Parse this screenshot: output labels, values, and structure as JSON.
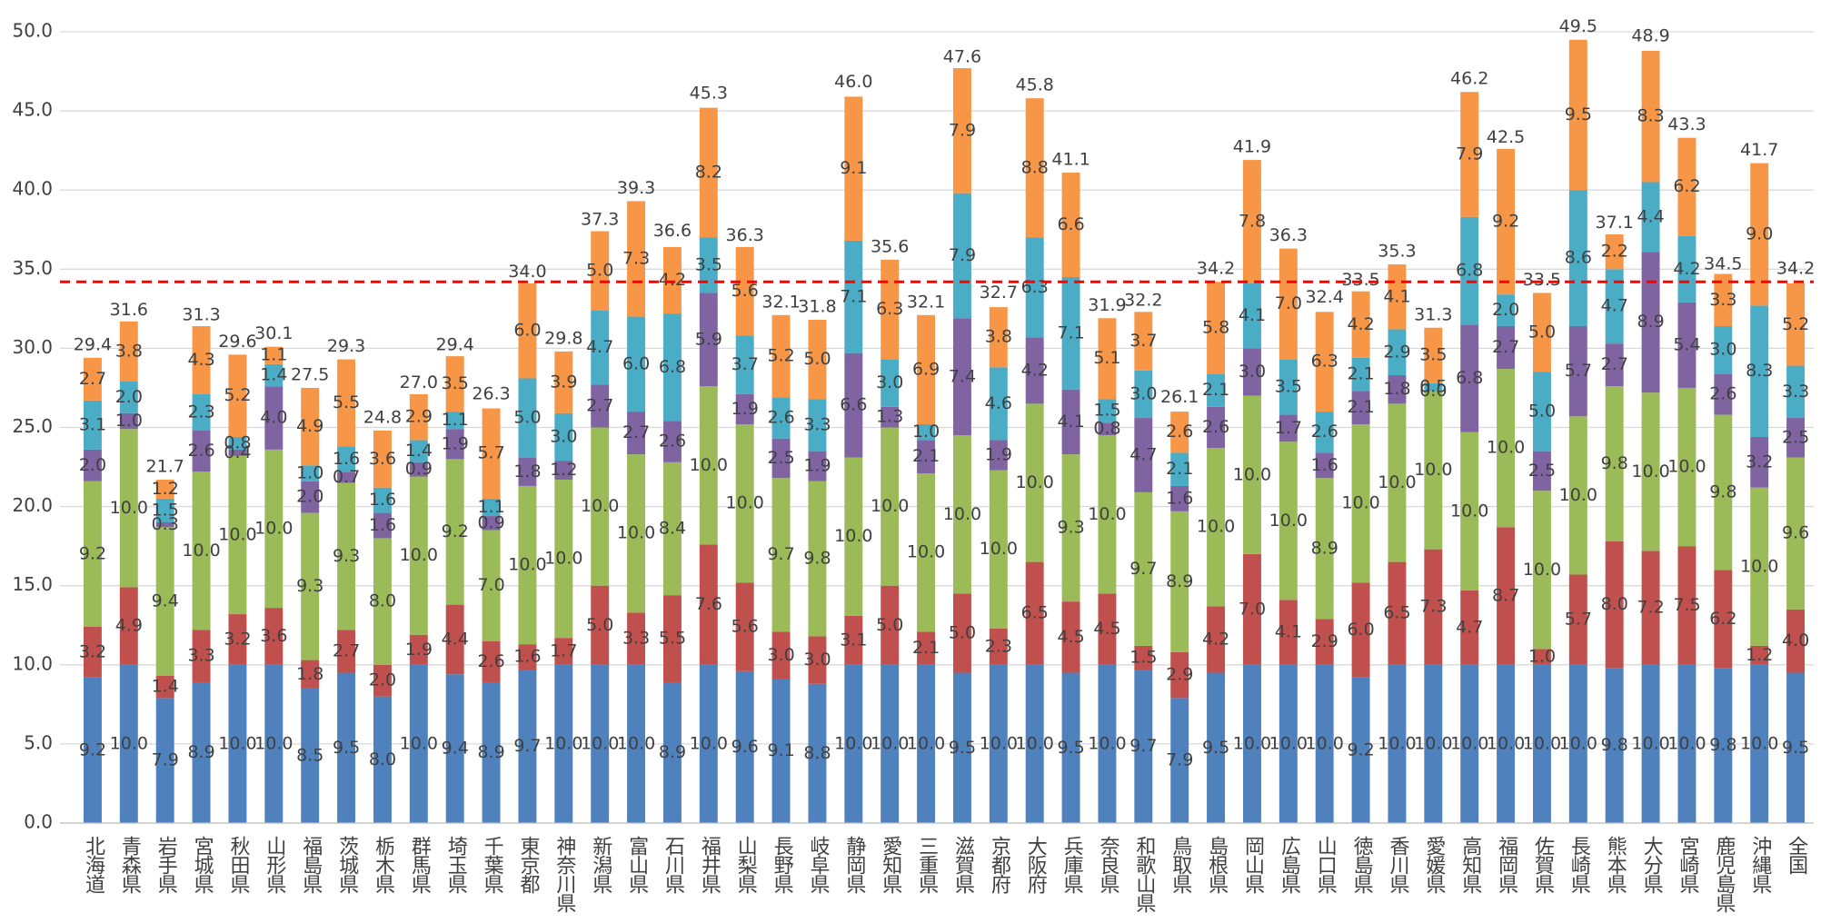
{
  "chart_data": {
    "type": "stacked_bar",
    "categories": [
      "北海道",
      "青森県",
      "岩手県",
      "宮城県",
      "秋田県",
      "山形県",
      "福島県",
      "茨城県",
      "栃木県",
      "群馬県",
      "埼玉県",
      "千葉県",
      "東京都",
      "神奈川県",
      "新潟県",
      "富山県",
      "石川県",
      "福井県",
      "山梨県",
      "長野県",
      "岐阜県",
      "静岡県",
      "愛知県",
      "三重県",
      "滋賀県",
      "京都府",
      "大阪府",
      "兵庫県",
      "奈良県",
      "和歌山県",
      "鳥取県",
      "島根県",
      "岡山県",
      "広島県",
      "山口県",
      "徳島県",
      "香川県",
      "愛媛県",
      "高知県",
      "福岡県",
      "佐賀県",
      "長崎県",
      "熊本県",
      "大分県",
      "宮崎県",
      "鹿児島県",
      "沖縄県",
      "全国"
    ],
    "series": [
      {
        "color": "#4f81bd",
        "values": [
          9.2,
          10.0,
          7.9,
          8.9,
          10.0,
          10.0,
          8.5,
          9.5,
          8.0,
          10.0,
          9.4,
          8.9,
          9.7,
          10.0,
          10.0,
          10.0,
          8.9,
          10.0,
          9.6,
          9.1,
          8.8,
          10.0,
          10.0,
          10.0,
          9.5,
          10.0,
          10.0,
          9.5,
          10.0,
          9.7,
          7.9,
          9.5,
          10.0,
          10.0,
          10.0,
          9.2,
          10.0,
          10.0,
          10.0,
          10.0,
          10.0,
          10.0,
          9.8,
          10.0,
          10.0,
          9.8,
          10.0,
          9.5
        ],
        "value_labels": [
          "9.2",
          "10.0",
          "7.9",
          "8.9",
          "10.0",
          "10.0",
          "8.5",
          "9.5",
          "8.0",
          "10.0",
          "9.4",
          "8.9",
          "9.7",
          "10.0",
          "10.0",
          "10.0",
          "8.9",
          "10.0",
          "9.6",
          "9.1",
          "8.8",
          "10.0",
          "10.0",
          "10.0",
          "9.5",
          "10.0",
          "10.0",
          "9.5",
          "10.0",
          "9.7",
          "7.9",
          "9.5",
          "10.0",
          "10.0",
          "10.0",
          "9.2",
          "10.0",
          "10.0",
          "10.0",
          "10.0",
          "10.0",
          "10.0",
          "9.8",
          "10.0",
          "10.0",
          "9.8",
          "10.0",
          "9.5"
        ]
      },
      {
        "color": "#c0504d",
        "values": [
          3.2,
          4.9,
          1.4,
          3.3,
          3.2,
          3.6,
          1.8,
          2.7,
          2.0,
          1.9,
          4.4,
          2.6,
          1.6,
          1.7,
          5.0,
          3.3,
          5.5,
          7.6,
          5.6,
          3.0,
          3.0,
          3.1,
          5.0,
          2.1,
          5.0,
          2.3,
          6.5,
          4.5,
          4.5,
          1.5,
          2.9,
          4.2,
          7.0,
          4.1,
          2.9,
          6.0,
          6.5,
          7.3,
          4.7,
          8.7,
          1.0,
          5.7,
          8.0,
          7.2,
          7.5,
          6.2,
          1.2,
          4.0
        ],
        "value_labels": [
          "3.2",
          "4.9",
          "1.4",
          "3.3",
          "3.2",
          "3.6",
          "1.8",
          "2.7",
          "2.0",
          "1.9",
          "4.4",
          "2.6",
          "1.6",
          "1.7",
          "5.0",
          "3.3",
          "5.5",
          "7.6",
          "5.6",
          "3.0",
          "3.0",
          "3.1",
          "5.0",
          "2.1",
          "5.0",
          "2.3",
          "6.5",
          "4.5",
          "4.5",
          "1.5",
          "2.9",
          "4.2",
          "7.0",
          "4.1",
          "2.9",
          "6.0",
          "6.5",
          "7.3",
          "4.7",
          "8.7",
          "1.0",
          "5.7",
          "8.0",
          "7.2",
          "7.5",
          "6.2",
          "1.2",
          "4.0"
        ]
      },
      {
        "color": "#9bbb59",
        "values": [
          9.2,
          10.0,
          9.4,
          10.0,
          10.0,
          10.0,
          9.3,
          9.3,
          8.0,
          10.0,
          9.2,
          7.0,
          10.0,
          10.0,
          10.0,
          10.0,
          8.4,
          10.0,
          10.0,
          9.7,
          9.8,
          10.0,
          10.0,
          10.0,
          10.0,
          10.0,
          10.0,
          9.3,
          10.0,
          9.7,
          8.9,
          10.0,
          10.0,
          10.0,
          8.9,
          10.0,
          10.0,
          10.0,
          10.0,
          10.0,
          10.0,
          10.0,
          9.8,
          10.0,
          10.0,
          9.8,
          10.0,
          9.6
        ],
        "value_labels": [
          "9.2",
          "10.0",
          "9.4",
          "10.0",
          "10.0",
          "10.0",
          "9.3",
          "9.3",
          "8.0",
          "10.0",
          "9.2",
          "7.0",
          "10.0",
          "10.0",
          "10.0",
          "10.0",
          "8.4",
          "10.0",
          "10.0",
          "9.7",
          "9.8",
          "10.0",
          "10.0",
          "10.0",
          "10.0",
          "10.0",
          "10.0",
          "9.3",
          "10.0",
          "9.7",
          "8.9",
          "10.0",
          "10.0",
          "10.0",
          "8.9",
          "10.0",
          "10.0",
          "10.0",
          "10.0",
          "10.0",
          "10.0",
          "10.0",
          "9.8",
          "10.0",
          "10.0",
          "9.8",
          "10.0",
          "9.6"
        ]
      },
      {
        "color": "#8064a2",
        "values": [
          2.0,
          1.0,
          0.3,
          2.6,
          0.4,
          4.0,
          2.0,
          0.7,
          1.6,
          0.9,
          1.9,
          0.9,
          1.8,
          1.2,
          2.7,
          2.7,
          2.6,
          5.9,
          1.9,
          2.5,
          1.9,
          6.6,
          1.3,
          2.1,
          7.4,
          1.9,
          4.2,
          4.1,
          0.8,
          4.7,
          1.6,
          2.6,
          3.0,
          1.7,
          1.6,
          2.1,
          1.8,
          0.0,
          6.8,
          2.7,
          2.5,
          5.7,
          2.7,
          8.9,
          5.4,
          2.6,
          3.2,
          2.5
        ],
        "value_labels": [
          "2.0",
          "1.0",
          "0.3",
          "2.6",
          "0.4",
          "4.0",
          "2.0",
          "0.7",
          "1.6",
          "0.9",
          "1.9",
          "0.9",
          "1.8",
          "1.2",
          "2.7",
          "2.7",
          "2.6",
          "5.9",
          "1.9",
          "2.5",
          "1.9",
          "6.6",
          "1.3",
          "2.1",
          "7.4",
          "1.9",
          "4.2",
          "4.1",
          "0.8",
          "4.7",
          "1.6",
          "2.6",
          "3.0",
          "1.7",
          "1.6",
          "2.1",
          "1.8",
          "0.0",
          "6.8",
          "2.7",
          "2.5",
          "5.7",
          "2.7",
          "8.9",
          "5.4",
          "2.6",
          "3.2",
          "2.5"
        ]
      },
      {
        "color": "#4bacc6",
        "values": [
          3.1,
          2.0,
          1.5,
          2.3,
          0.8,
          1.4,
          1.0,
          1.6,
          1.6,
          1.4,
          1.1,
          1.1,
          5.0,
          3.0,
          4.7,
          6.0,
          6.8,
          3.5,
          3.7,
          2.6,
          3.3,
          7.1,
          3.0,
          1.0,
          7.9,
          4.6,
          6.3,
          7.1,
          1.5,
          3.0,
          2.1,
          2.1,
          4.1,
          3.5,
          2.6,
          2.1,
          2.9,
          0.5,
          6.8,
          2.0,
          5.0,
          8.6,
          4.7,
          4.4,
          4.2,
          3.0,
          8.3,
          3.3
        ],
        "value_labels": [
          "3.1",
          "2.0",
          "1.5",
          "2.3",
          "0.8",
          "1.4",
          "1.0",
          "1.6",
          "1.6",
          "1.4",
          "1.1",
          "1.1",
          "5.0",
          "3.0",
          "4.7",
          "6.0",
          "6.8",
          "3.5",
          "3.7",
          "2.6",
          "3.3",
          "7.1",
          "3.0",
          "1.0",
          "7.9",
          "4.6",
          "6.3",
          "7.1",
          "1.5",
          "3.0",
          "2.1",
          "2.1",
          "4.1",
          "3.5",
          "2.6",
          "2.1",
          "2.9",
          "0.5",
          "6.8",
          "2.0",
          "5.0",
          "8.6",
          "4.7",
          "4.4",
          "4.2",
          "3.0",
          "8.3",
          "3.3"
        ]
      },
      {
        "color": "#f79646",
        "values": [
          2.7,
          3.8,
          1.2,
          4.3,
          5.2,
          1.1,
          4.9,
          5.5,
          3.6,
          2.9,
          3.5,
          5.7,
          6.0,
          3.9,
          5.0,
          7.3,
          4.2,
          8.2,
          5.6,
          5.2,
          5.0,
          9.1,
          6.3,
          6.9,
          7.9,
          3.8,
          8.8,
          6.6,
          5.1,
          3.7,
          2.6,
          5.8,
          7.8,
          7.0,
          6.3,
          4.2,
          4.1,
          3.5,
          7.9,
          9.2,
          5.0,
          9.5,
          2.2,
          8.3,
          6.2,
          3.3,
          9.0,
          5.2
        ],
        "value_labels": [
          "2.7",
          "3.8",
          "1.2",
          "4.3",
          "5.2",
          "1.1",
          "4.9",
          "5.5",
          "3.6",
          "2.9",
          "3.5",
          "5.7",
          "6.0",
          "3.9",
          "5.0",
          "7.3",
          "4.2",
          "8.2",
          "5.6",
          "5.2",
          "5.0",
          "9.1",
          "6.3",
          "6.9",
          "7.9",
          "3.8",
          "8.8",
          "6.6",
          "5.1",
          "3.7",
          "2.6",
          "5.8",
          "7.8",
          "7.0",
          "6.3",
          "4.2",
          "4.1",
          "3.5",
          "7.9",
          "9.2",
          "5.0",
          "9.5",
          "2.2",
          "8.3",
          "6.2",
          "3.3",
          "9.0",
          "5.2"
        ]
      }
    ],
    "totals": {
      "values": [
        29.4,
        31.6,
        21.7,
        31.3,
        29.6,
        30.1,
        27.5,
        29.3,
        24.8,
        27.0,
        29.4,
        26.3,
        34.0,
        29.8,
        37.3,
        39.3,
        36.6,
        45.3,
        36.3,
        32.1,
        31.8,
        46.0,
        35.6,
        32.1,
        47.6,
        32.7,
        45.8,
        41.1,
        31.9,
        32.2,
        26.1,
        34.2,
        41.9,
        36.3,
        32.4,
        33.5,
        35.3,
        31.3,
        46.2,
        42.5,
        33.5,
        49.5,
        37.1,
        48.9,
        43.3,
        34.5,
        41.7,
        34.2
      ],
      "value_labels": [
        "29.4",
        "31.6",
        "21.7",
        "31.3",
        "29.6",
        "30.1",
        "27.5",
        "29.3",
        "24.8",
        "27.0",
        "29.4",
        "26.3",
        "34.0",
        "29.8",
        "37.3",
        "39.3",
        "36.6",
        "45.3",
        "36.3",
        "32.1",
        "31.8",
        "46.0",
        "35.6",
        "32.1",
        "47.6",
        "32.7",
        "45.8",
        "41.1",
        "31.9",
        "32.2",
        "26.1",
        "34.2",
        "41.9",
        "36.3",
        "32.4",
        "33.5",
        "35.3",
        "31.3",
        "46.2",
        "42.5",
        "33.5",
        "49.5",
        "37.1",
        "48.9",
        "43.3",
        "34.5",
        "41.7",
        "34.2"
      ]
    },
    "reference_line": {
      "value": 34.2,
      "color": "#ff0000"
    },
    "ylim": [
      0,
      50
    ],
    "yticks": [
      {
        "value": 0,
        "label": "0.0"
      },
      {
        "value": 5,
        "label": "5.0"
      },
      {
        "value": 10,
        "label": "10.0"
      },
      {
        "value": 15,
        "label": "15.0"
      },
      {
        "value": 20,
        "label": "20.0"
      },
      {
        "value": 25,
        "label": "25.0"
      },
      {
        "value": 30,
        "label": "30.0"
      },
      {
        "value": 35,
        "label": "35.0"
      },
      {
        "value": 40,
        "label": "40.0"
      },
      {
        "value": 45,
        "label": "45.0"
      },
      {
        "value": 50,
        "label": "50.0"
      }
    ],
    "grid": true
  }
}
